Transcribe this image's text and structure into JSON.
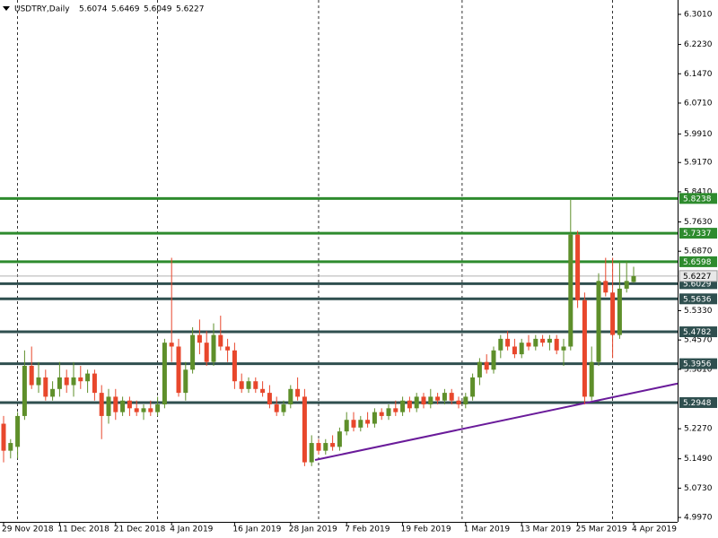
{
  "chart_data": {
    "type": "candlestick",
    "title": "USDTRY,Daily",
    "categories": [
      "29 Nov 2018",
      null,
      null,
      null,
      null,
      null,
      null,
      null,
      "11 Dec 2018",
      null,
      null,
      null,
      null,
      null,
      null,
      null,
      "21 Dec 2018",
      null,
      null,
      null,
      null,
      null,
      null,
      null,
      "4 Jan 2019",
      null,
      null,
      null,
      null,
      null,
      null,
      null,
      null,
      "16 Jan 2019",
      null,
      null,
      null,
      null,
      null,
      null,
      null,
      "28 Jan 2019",
      null,
      null,
      null,
      null,
      null,
      null,
      null,
      "7 Feb 2019",
      null,
      null,
      null,
      null,
      null,
      null,
      null,
      "19 Feb 2019",
      null,
      null,
      null,
      null,
      null,
      null,
      null,
      null,
      "1 Mar 2019",
      null,
      null,
      null,
      null,
      null,
      null,
      null,
      "13 Mar 2019",
      null,
      null,
      null,
      null,
      null,
      null,
      null,
      "25 Mar 2019",
      null,
      null,
      null,
      null,
      null,
      null,
      null,
      "4 Apr 2019"
    ],
    "open": [
      5.24,
      5.17,
      5.18,
      5.26,
      5.39,
      5.34,
      5.36,
      5.31,
      5.33,
      5.36,
      5.34,
      5.36,
      5.35,
      5.37,
      5.32,
      5.26,
      5.31,
      5.27,
      5.3,
      5.28,
      5.27,
      5.28,
      5.27,
      5.29,
      5.45,
      5.44,
      5.32,
      5.38,
      5.47,
      5.45,
      5.4,
      5.47,
      5.44,
      5.43,
      5.35,
      5.33,
      5.35,
      5.33,
      5.32,
      5.29,
      5.27,
      5.29,
      5.33,
      5.31,
      5.14,
      5.19,
      5.17,
      5.19,
      5.18,
      5.22,
      5.25,
      5.23,
      5.25,
      5.24,
      5.27,
      5.26,
      5.28,
      5.27,
      5.3,
      5.28,
      5.31,
      5.29,
      5.31,
      5.3,
      5.32,
      5.3,
      5.29,
      5.31,
      5.36,
      5.4,
      5.38,
      5.43,
      5.46,
      5.44,
      5.42,
      5.45,
      5.44,
      5.46,
      5.45,
      5.46,
      5.43,
      5.44,
      5.73,
      5.56,
      5.31,
      5.4,
      5.61,
      5.58,
      5.47,
      5.59,
      5.6074
    ],
    "high": [
      5.26,
      5.2,
      5.27,
      5.43,
      5.44,
      5.4,
      5.38,
      5.35,
      5.4,
      5.38,
      5.4,
      5.39,
      5.38,
      5.38,
      5.34,
      5.33,
      5.33,
      5.31,
      5.31,
      5.3,
      5.29,
      5.3,
      5.31,
      5.46,
      5.67,
      5.46,
      5.4,
      5.49,
      5.51,
      5.48,
      5.5,
      5.52,
      5.46,
      5.45,
      5.37,
      5.36,
      5.36,
      5.35,
      5.34,
      5.31,
      5.3,
      5.34,
      5.36,
      5.33,
      5.21,
      5.2,
      5.2,
      5.21,
      5.23,
      5.27,
      5.27,
      5.26,
      5.27,
      5.28,
      5.28,
      5.29,
      5.3,
      5.31,
      5.31,
      5.32,
      5.32,
      5.33,
      5.32,
      5.33,
      5.33,
      5.31,
      5.32,
      5.37,
      5.41,
      5.42,
      5.44,
      5.47,
      5.48,
      5.46,
      5.46,
      5.47,
      5.47,
      5.47,
      5.47,
      5.47,
      5.46,
      5.82,
      5.74,
      5.58,
      5.44,
      5.63,
      5.67,
      5.67,
      5.66,
      5.66,
      5.6469
    ],
    "low": [
      5.14,
      5.15,
      5.15,
      5.25,
      5.33,
      5.32,
      5.3,
      5.3,
      5.31,
      5.32,
      5.31,
      5.33,
      5.32,
      5.3,
      5.2,
      5.24,
      5.25,
      5.26,
      5.26,
      5.26,
      5.25,
      5.26,
      5.26,
      5.28,
      5.4,
      5.31,
      5.3,
      5.37,
      5.42,
      5.39,
      5.39,
      5.43,
      5.4,
      5.33,
      5.32,
      5.32,
      5.32,
      5.31,
      5.28,
      5.26,
      5.26,
      5.28,
      5.3,
      5.13,
      5.13,
      5.16,
      5.16,
      5.17,
      5.17,
      5.21,
      5.22,
      5.22,
      5.23,
      5.23,
      5.25,
      5.25,
      5.26,
      5.26,
      5.27,
      5.27,
      5.28,
      5.28,
      5.29,
      5.29,
      5.29,
      5.28,
      5.28,
      5.3,
      5.34,
      5.37,
      5.37,
      5.41,
      5.43,
      5.41,
      5.41,
      5.43,
      5.43,
      5.44,
      5.43,
      5.42,
      5.39,
      5.43,
      5.54,
      5.29,
      5.3,
      5.39,
      5.57,
      5.41,
      5.46,
      5.58,
      5.6049
    ],
    "close": [
      5.17,
      5.19,
      5.26,
      5.39,
      5.34,
      5.36,
      5.31,
      5.33,
      5.36,
      5.34,
      5.36,
      5.35,
      5.37,
      5.32,
      5.26,
      5.31,
      5.27,
      5.3,
      5.28,
      5.27,
      5.28,
      5.27,
      5.29,
      5.45,
      5.44,
      5.32,
      5.38,
      5.47,
      5.45,
      5.4,
      5.47,
      5.44,
      5.43,
      5.35,
      5.33,
      5.35,
      5.33,
      5.32,
      5.29,
      5.27,
      5.29,
      5.33,
      5.31,
      5.14,
      5.19,
      5.17,
      5.19,
      5.18,
      5.22,
      5.25,
      5.23,
      5.25,
      5.24,
      5.27,
      5.26,
      5.28,
      5.27,
      5.3,
      5.28,
      5.31,
      5.29,
      5.31,
      5.3,
      5.32,
      5.3,
      5.29,
      5.31,
      5.36,
      5.4,
      5.38,
      5.43,
      5.46,
      5.44,
      5.42,
      5.45,
      5.44,
      5.46,
      5.45,
      5.46,
      5.43,
      5.44,
      5.73,
      5.56,
      5.31,
      5.4,
      5.61,
      5.58,
      5.47,
      5.59,
      5.61,
      5.6227
    ],
    "up_color": "#5e8f2a",
    "down_color": "#e8472c",
    "levels": [
      {
        "value": 5.8238,
        "color": "#2e8b2e"
      },
      {
        "value": 5.7337,
        "color": "#2e8b2e"
      },
      {
        "value": 5.6598,
        "color": "#2e8b2e"
      },
      {
        "value": 5.6029,
        "color": "#2f4f4f"
      },
      {
        "value": 5.5636,
        "color": "#2f4f4f"
      },
      {
        "value": 5.4782,
        "color": "#2f4f4f"
      },
      {
        "value": 5.3956,
        "color": "#2f4f4f"
      },
      {
        "value": 5.2948,
        "color": "#2f4f4f"
      }
    ],
    "trend_line": {
      "from": 5.146,
      "to": 5.344,
      "color": "#6a1b9a"
    },
    "ylim": [
      4.9856,
      6.3382
    ],
    "yticks": [
      {
        "value": 6.301,
        "label": "6.3010"
      },
      {
        "value": 6.223,
        "label": "6.2230"
      },
      {
        "value": 6.147,
        "label": "6.1470"
      },
      {
        "value": 6.071,
        "label": "6.0710"
      },
      {
        "value": 5.991,
        "label": "5.9910"
      },
      {
        "value": 5.917,
        "label": "5.9170"
      },
      {
        "value": 5.841,
        "label": "5.8410"
      },
      {
        "value": 5.763,
        "label": "5.7630"
      },
      {
        "value": 5.687,
        "label": "5.6870"
      },
      {
        "value": 5.533,
        "label": "5.5330"
      },
      {
        "value": 5.457,
        "label": "5.4570"
      },
      {
        "value": 5.381,
        "label": "5.3810"
      },
      {
        "value": 5.227,
        "label": "5.2270"
      },
      {
        "value": 5.149,
        "label": "5.1490"
      },
      {
        "value": 5.073,
        "label": "5.0730"
      },
      {
        "value": 4.997,
        "label": "4.9970"
      }
    ]
  }
}
